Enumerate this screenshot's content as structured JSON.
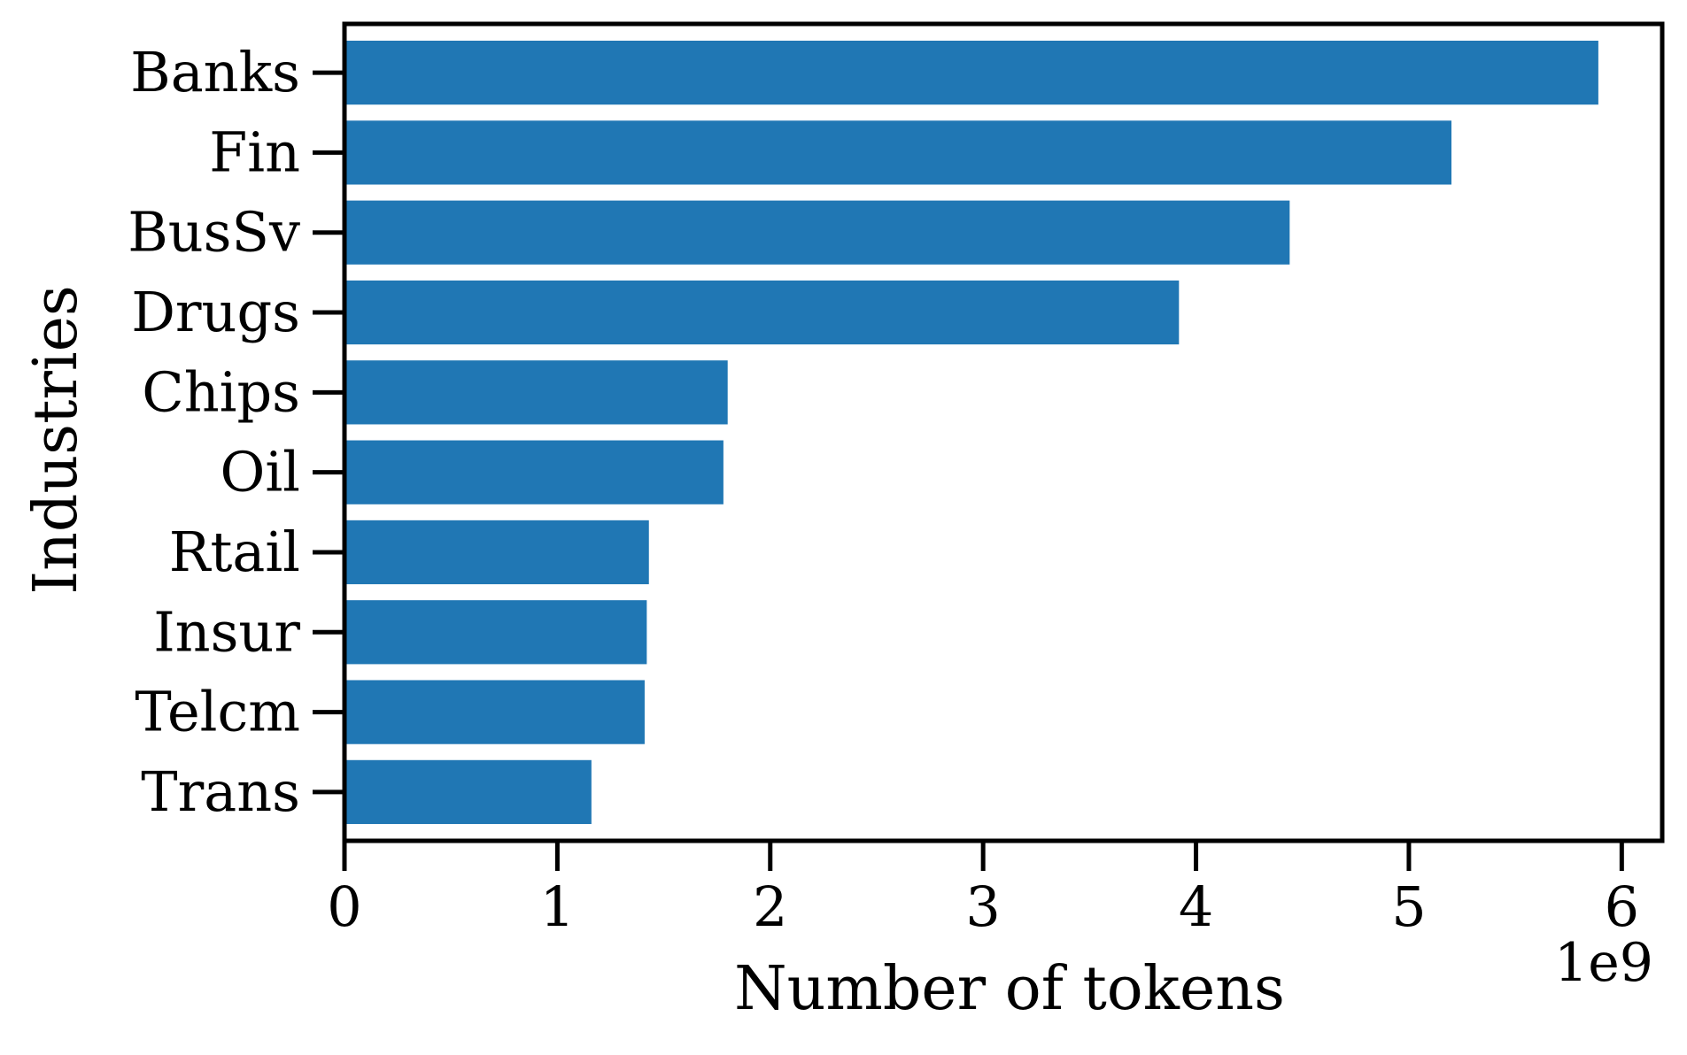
{
  "chart_data": {
    "type": "bar",
    "orientation": "horizontal",
    "x_label": "Number of tokens",
    "y_label": "Industries",
    "x_offset_text": "1e9",
    "categories": [
      "Banks",
      "Fin",
      "BusSv",
      "Drugs",
      "Chips",
      "Oil",
      "Rtail",
      "Insur",
      "Telcm",
      "Trans"
    ],
    "values": [
      5.89,
      5.2,
      4.44,
      3.92,
      1.8,
      1.78,
      1.43,
      1.42,
      1.41,
      1.16
    ],
    "color": "#2077b4",
    "xlim": [
      0,
      6.19
    ],
    "xticks": [
      0,
      1,
      2,
      3,
      4,
      5,
      6
    ],
    "grid": false
  }
}
